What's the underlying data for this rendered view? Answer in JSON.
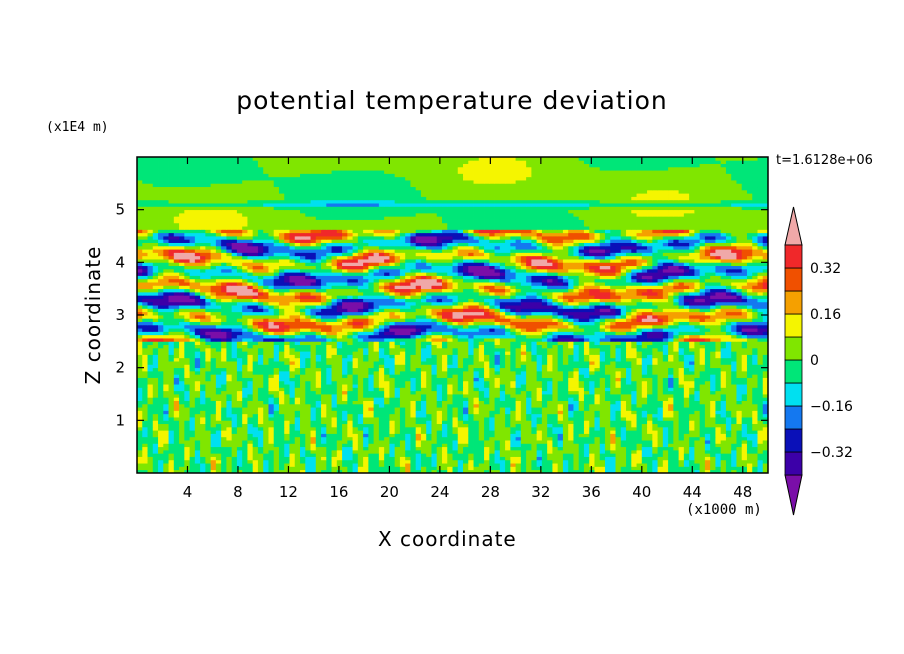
{
  "chart_data": {
    "type": "heatmap",
    "title": "potential temperature deviation",
    "xlabel": "X coordinate",
    "ylabel": "Z coordinate",
    "x_unit": "(x1000 m)",
    "z_unit": "(x1E4 m)",
    "time_label": "t=1.6128e+06",
    "xlim": [
      0,
      50
    ],
    "ylim": [
      0,
      6
    ],
    "x_ticks": [
      4,
      8,
      12,
      16,
      20,
      24,
      28,
      32,
      36,
      40,
      44,
      48
    ],
    "y_ticks": [
      1,
      2,
      3,
      4,
      5
    ],
    "colorbar": {
      "levels": [
        -0.4,
        -0.32,
        -0.24,
        -0.16,
        -0.08,
        0,
        0.08,
        0.16,
        0.24,
        0.32,
        0.4
      ],
      "labeled_levels": [
        -0.32,
        -0.16,
        0,
        0.16,
        0.32
      ],
      "labels": [
        "0.32",
        "0.16",
        "0",
        "−0.16",
        "−0.32"
      ],
      "colors": [
        "#7a0ea8",
        "#3c00a8",
        "#0a10b8",
        "#1478f0",
        "#00e0f0",
        "#00e678",
        "#80e600",
        "#f5f500",
        "#f5a000",
        "#f05000",
        "#f0282a",
        "#f0a8a8"
      ]
    },
    "layers": [
      {
        "z_range": [
          0,
          2.5
        ],
        "description_level": "small noise ~ -0.1 to 0.1"
      },
      {
        "z_range": [
          2.5,
          4.6
        ],
        "description_level": "strong oscillations ~ -0.4 to 0.4"
      },
      {
        "z_range": [
          4.6,
          6
        ],
        "description_level": "weak ~ -0.1 to 0.1"
      }
    ]
  }
}
